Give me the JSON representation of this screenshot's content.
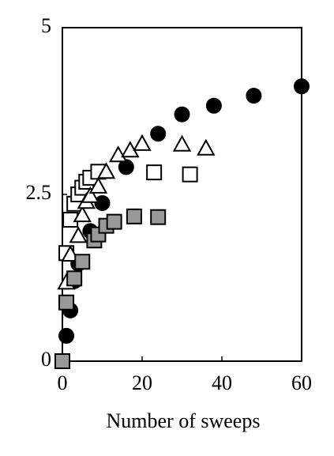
{
  "chart_data": {
    "type": "scatter",
    "x_label": "Number of sweeps",
    "xlim": [
      0,
      60
    ],
    "xticks": [
      0,
      20,
      40,
      60
    ],
    "ylim": [
      0,
      5
    ],
    "yticks": [
      0,
      2.5,
      5
    ],
    "series": [
      {
        "marker": "circle",
        "color": "#000000",
        "fill": "#000000",
        "x": [
          0,
          1,
          2,
          3,
          4,
          7,
          10,
          16,
          24,
          30,
          38,
          48,
          60
        ],
        "values": [
          0,
          0.38,
          0.76,
          1.2,
          1.46,
          1.95,
          2.37,
          2.91,
          3.41,
          3.7,
          3.83,
          3.98,
          4.12
        ]
      },
      {
        "marker": "square",
        "color": "#000000",
        "fill": "#ffffff",
        "x": [
          1,
          2,
          3,
          4,
          5,
          6,
          7,
          9,
          23,
          32
        ],
        "values": [
          1.62,
          2.12,
          2.36,
          2.5,
          2.6,
          2.69,
          2.75,
          2.84,
          2.83,
          2.8
        ]
      },
      {
        "marker": "triangle",
        "color": "#000000",
        "fill": "#ffffff",
        "x": [
          1,
          2,
          4,
          5,
          6,
          7,
          9,
          11,
          14,
          17,
          20,
          30,
          36
        ],
        "values": [
          1.18,
          1.6,
          1.88,
          2.19,
          2.39,
          2.48,
          2.62,
          2.84,
          3.09,
          3.16,
          3.26,
          3.25,
          3.19
        ]
      },
      {
        "marker": "square",
        "color": "#000000",
        "fill": "#999999",
        "x": [
          0,
          1,
          3,
          5,
          8,
          9,
          11,
          13,
          18,
          24
        ],
        "values": [
          0,
          0.88,
          1.24,
          1.49,
          1.81,
          1.9,
          2.03,
          2.09,
          2.17,
          2.16
        ]
      }
    ]
  }
}
